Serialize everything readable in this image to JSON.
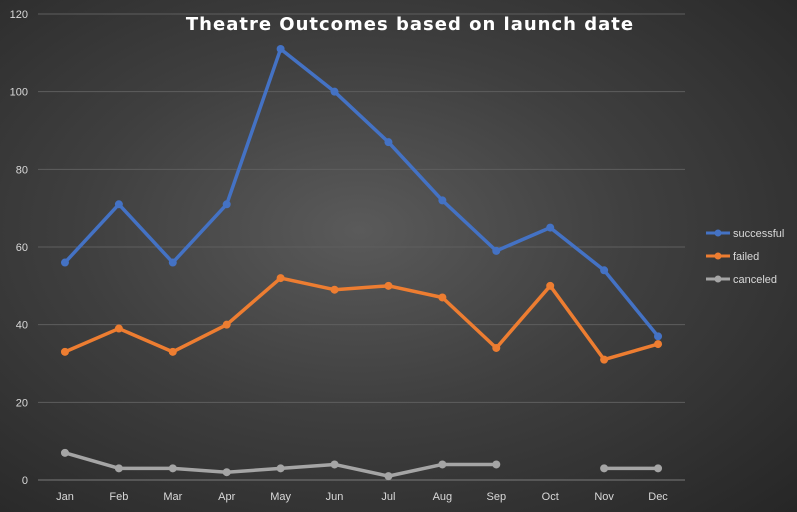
{
  "chart_data": {
    "type": "line",
    "title": "Theatre Outcomes based on launch date",
    "xlabel": "",
    "ylabel": "",
    "categories": [
      "Jan",
      "Feb",
      "Mar",
      "Apr",
      "May",
      "Jun",
      "Jul",
      "Aug",
      "Sep",
      "Oct",
      "Nov",
      "Dec"
    ],
    "ylim": [
      0,
      120
    ],
    "yticks": [
      0,
      20,
      40,
      60,
      80,
      100,
      120
    ],
    "grid": true,
    "legend_position": "right",
    "background": "dark",
    "series": [
      {
        "name": "successful",
        "color": "#4472c4",
        "values": [
          56,
          71,
          56,
          71,
          111,
          100,
          87,
          72,
          59,
          65,
          54,
          37
        ]
      },
      {
        "name": "failed",
        "color": "#ed7d31",
        "values": [
          33,
          39,
          33,
          40,
          52,
          49,
          50,
          47,
          34,
          50,
          31,
          35
        ]
      },
      {
        "name": "canceled",
        "color": "#a5a5a5",
        "values": [
          7,
          3,
          3,
          2,
          3,
          4,
          1,
          4,
          4,
          null,
          3,
          3
        ]
      }
    ]
  }
}
